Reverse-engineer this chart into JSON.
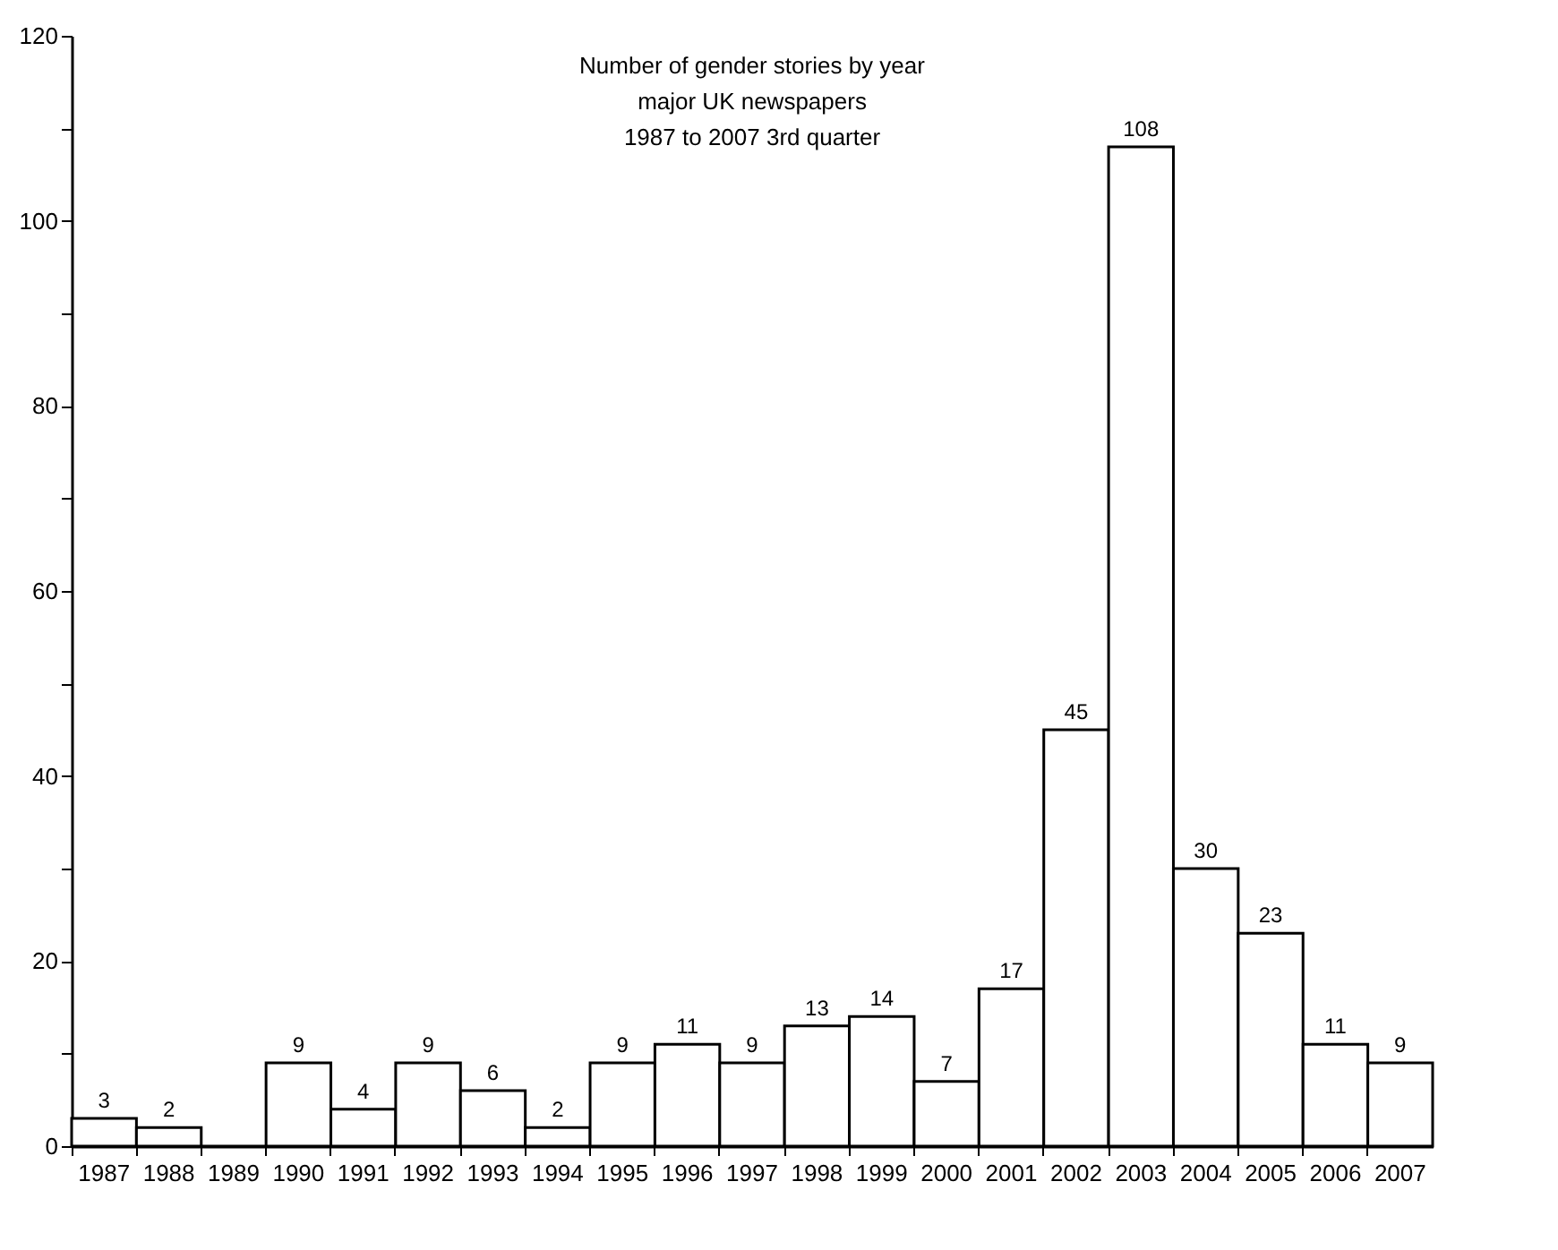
{
  "chart_data": {
    "type": "bar",
    "title": [
      "Number of gender stories by year",
      "major UK newspapers",
      "1987 to 2007 3rd quarter"
    ],
    "categories": [
      "1987",
      "1988",
      "1989",
      "1990",
      "1991",
      "1992",
      "1993",
      "1994",
      "1995",
      "1996",
      "1997",
      "1998",
      "1999",
      "2000",
      "2001",
      "2002",
      "2003",
      "2004",
      "2005",
      "2006",
      "2007"
    ],
    "values": [
      3,
      2,
      0,
      9,
      4,
      9,
      6,
      2,
      9,
      11,
      9,
      13,
      14,
      7,
      17,
      45,
      108,
      30,
      23,
      11,
      9
    ],
    "value_labels": [
      "3",
      "2",
      null,
      "9",
      "4",
      "9",
      "6",
      "2",
      "9",
      "11",
      "9",
      "13",
      "14",
      "7",
      "17",
      "45",
      "108",
      "30",
      "23",
      "11",
      "9"
    ],
    "color": "#ffffff",
    "ylim": [
      0,
      120
    ],
    "yticks": [
      0,
      {
        "value": 10,
        "label": null
      },
      20,
      {
        "value": 30,
        "label": null
      },
      40,
      {
        "value": 50,
        "label": null
      },
      60,
      {
        "value": 70,
        "label": null
      },
      80,
      {
        "value": 90,
        "label": null
      },
      100,
      {
        "value": 110,
        "label": null
      },
      120
    ],
    "grid": false
  }
}
